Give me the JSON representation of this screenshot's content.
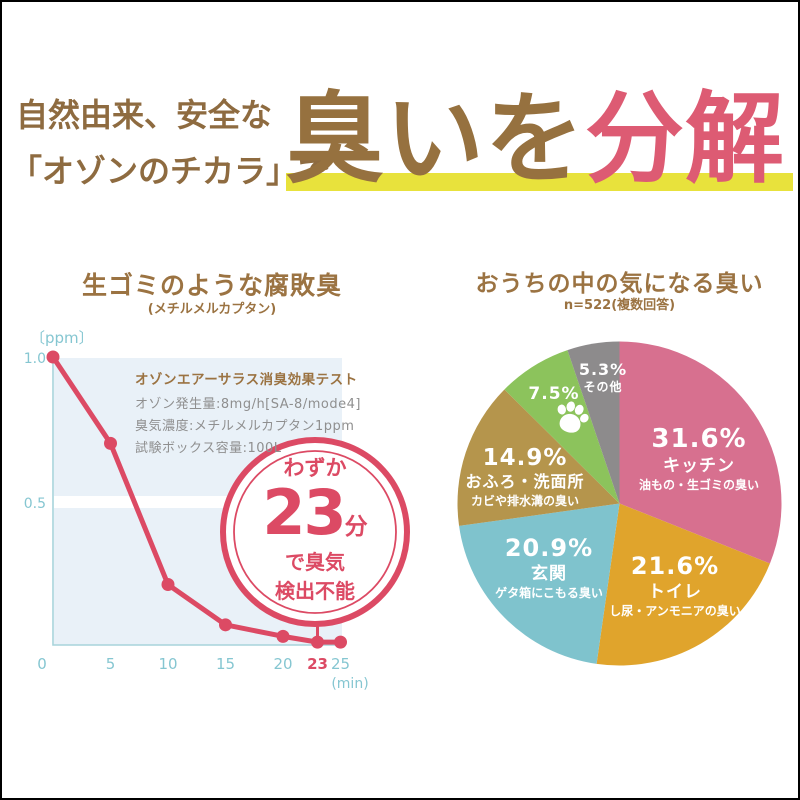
{
  "header": {
    "line1": "自然由来、安全な",
    "line2": "「オゾンのチカラ」で",
    "big_brown": "臭いを",
    "big_pink": "分解"
  },
  "colors": {
    "brown": "#96713f",
    "pink_accent": "#dc4a64",
    "highlight_yellow": "#e8e23c",
    "plot_bg": "#e9f1f8",
    "axis_teal": "#a7d4db",
    "tick_teal": "#85c6d1",
    "info_gray": "#8f8f8f"
  },
  "left_chart": {
    "title": "生ゴミのような腐敗臭",
    "subtitle": "(メチルメルカプタン)",
    "info_title": "オゾンエアーサラス消臭効果テスト",
    "info_line1": "オゾン発生量:8mg/h[SA-8/mode4]",
    "info_line2": "臭気濃度:メチルメルカプタン1ppm",
    "info_line3": "試験ボックス容量:100L",
    "y_unit": "〔ppm〕",
    "x_unit": "(min)",
    "callout": {
      "top": "わずか",
      "number": "23",
      "unit": "分",
      "line2": "で臭気",
      "line3": "検出不能"
    }
  },
  "right_chart": {
    "title": "おうちの中の気になる臭い",
    "subtitle": "n=522(複数回答)"
  },
  "chart_data": [
    {
      "type": "line",
      "title": "生ゴミのような腐敗臭(メチルメルカプタン)",
      "x": [
        0,
        5,
        10,
        15,
        20,
        23,
        25
      ],
      "y": [
        1.0,
        0.7,
        0.21,
        0.07,
        0.03,
        0.01,
        0.01
      ],
      "xlabel": "(min)",
      "ylabel": "〔ppm〕",
      "xticks": [
        "0",
        "5",
        "10",
        "15",
        "20",
        "23",
        "25"
      ],
      "highlight_xtick": "23",
      "yticks": [
        "0.5",
        "1.0"
      ],
      "xlim": [
        0,
        25.5
      ],
      "ylim": [
        0,
        1.05
      ],
      "grid": false,
      "line_color": "#dc4a64",
      "annotation": "わずか23分で臭気検出不能"
    },
    {
      "type": "pie",
      "title": "おうちの中の気になる臭い",
      "subtitle": "n=522(複数回答)",
      "slices": [
        {
          "pct": "31.6%",
          "value": 31.6,
          "label": "キッチン",
          "desc": "油もの・生ゴミの臭い",
          "color": "#d7708f"
        },
        {
          "pct": "21.6%",
          "value": 21.6,
          "label": "トイレ",
          "desc": "し尿・アンモニアの臭い",
          "color": "#e0a42c"
        },
        {
          "pct": "20.9%",
          "value": 20.9,
          "label": "玄関",
          "desc": "ゲタ箱にこもる臭い",
          "color": "#7fc3cd"
        },
        {
          "pct": "14.9%",
          "value": 14.9,
          "label": "おふろ・洗面所",
          "desc": "カビや排水溝の臭い",
          "color": "#b5954c"
        },
        {
          "pct": "7.5%",
          "value": 7.5,
          "label": "",
          "desc": "",
          "color": "#8cc35c",
          "icon": "paw-icon"
        },
        {
          "pct": "5.3%",
          "value": 5.3,
          "label": "その他",
          "desc": "",
          "color": "#8d8b8c"
        }
      ]
    }
  ]
}
